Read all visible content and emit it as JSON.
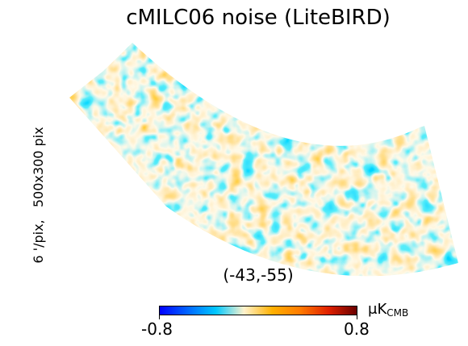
{
  "title": "cMILC06 noise (LiteBIRD)",
  "side_label": "6 '/pix,   500x300 pix",
  "coordinates_label": "(-43,-55)",
  "colorbar": {
    "min_label": "-0.8",
    "max_label": "0.8",
    "unit_prefix": "μK",
    "unit_sub": "CMB",
    "stops": [
      "#0000ff",
      "#0066ff",
      "#00c8ff",
      "#fff2cc",
      "#ffb000",
      "#ff7a00",
      "#e02000",
      "#6a0000"
    ]
  }
}
